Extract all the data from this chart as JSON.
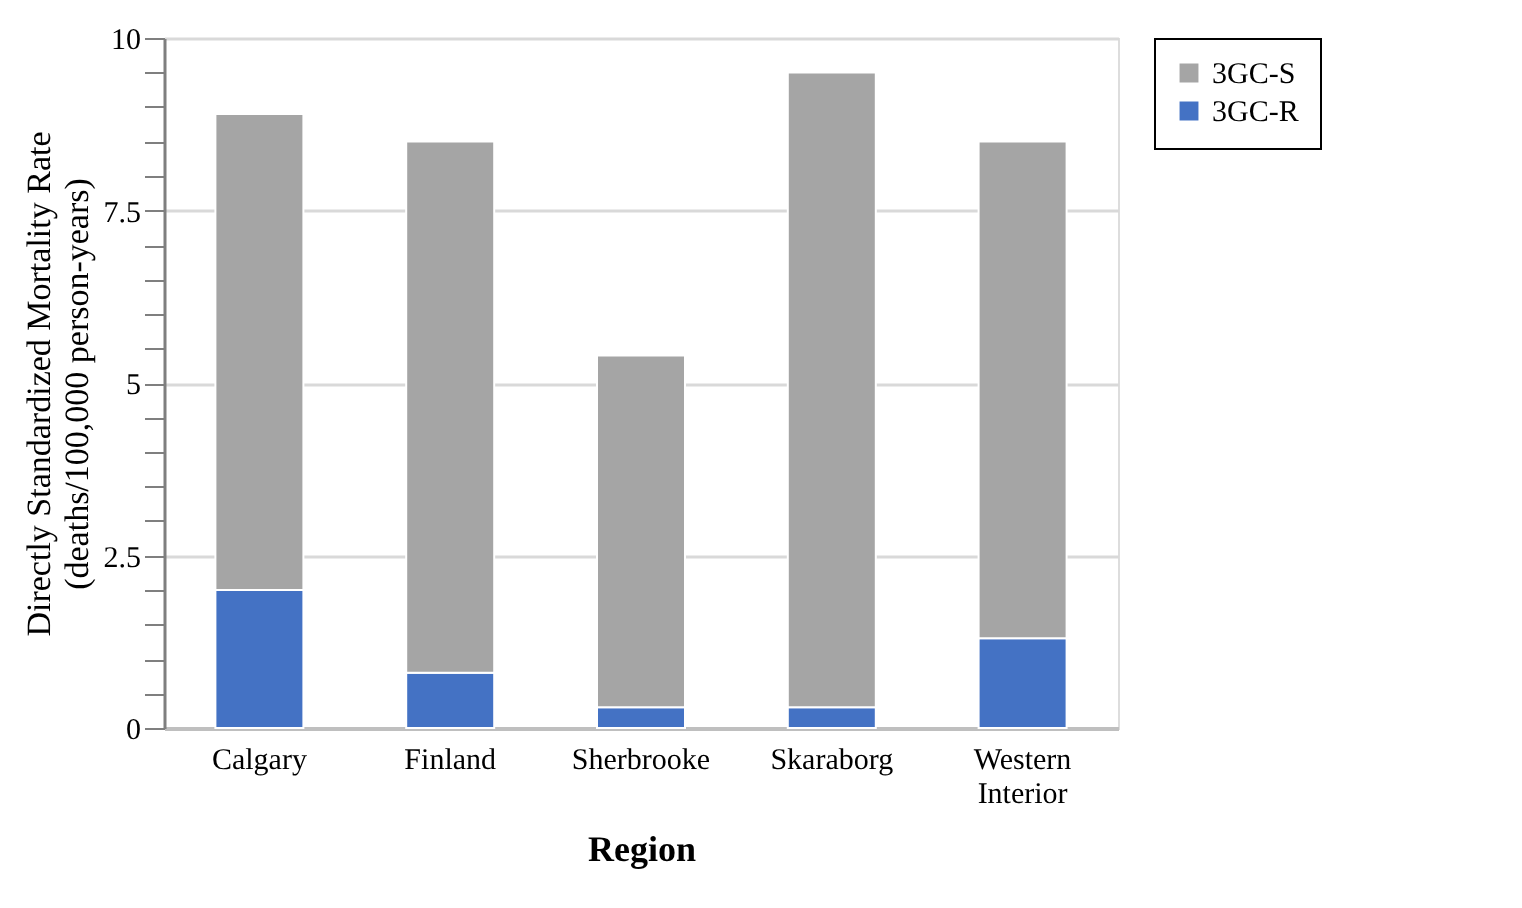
{
  "chart_data": {
    "type": "bar",
    "stacked": true,
    "xlabel": "Region",
    "ylabel": "Directly Standardized Mortality Rate\n(deaths/100,000 person-years)",
    "categories": [
      "Calgary",
      "Finland",
      "Sherbrooke",
      "Skaraborg",
      "Western Interior"
    ],
    "series": [
      {
        "name": "3GC-R",
        "color": "#4472c4",
        "values": [
          2.0,
          0.8,
          0.3,
          0.3,
          1.3
        ]
      },
      {
        "name": "3GC-S",
        "color": "#a5a5a5",
        "values": [
          6.9,
          7.7,
          5.1,
          9.2,
          7.2
        ]
      }
    ],
    "ylim": [
      0,
      10
    ],
    "yticks": [
      0,
      {
        "value": 0.5,
        "label": null
      },
      {
        "value": 1,
        "label": null
      },
      {
        "value": 1.5,
        "label": null
      },
      {
        "value": 2,
        "label": null
      },
      2.5,
      {
        "value": 3,
        "label": null
      },
      {
        "value": 3.5,
        "label": null
      },
      {
        "value": 4,
        "label": null
      },
      {
        "value": 4.5,
        "label": null
      },
      5,
      {
        "value": 5.5,
        "label": null
      },
      {
        "value": 6,
        "label": null
      },
      {
        "value": 6.5,
        "label": null
      },
      {
        "value": 7,
        "label": null
      },
      7.5,
      {
        "value": 8,
        "label": null
      },
      {
        "value": 8.5,
        "label": null
      },
      {
        "value": 9,
        "label": null
      },
      {
        "value": 9.5,
        "label": null
      },
      10
    ],
    "grid": "y",
    "legend": "right"
  }
}
